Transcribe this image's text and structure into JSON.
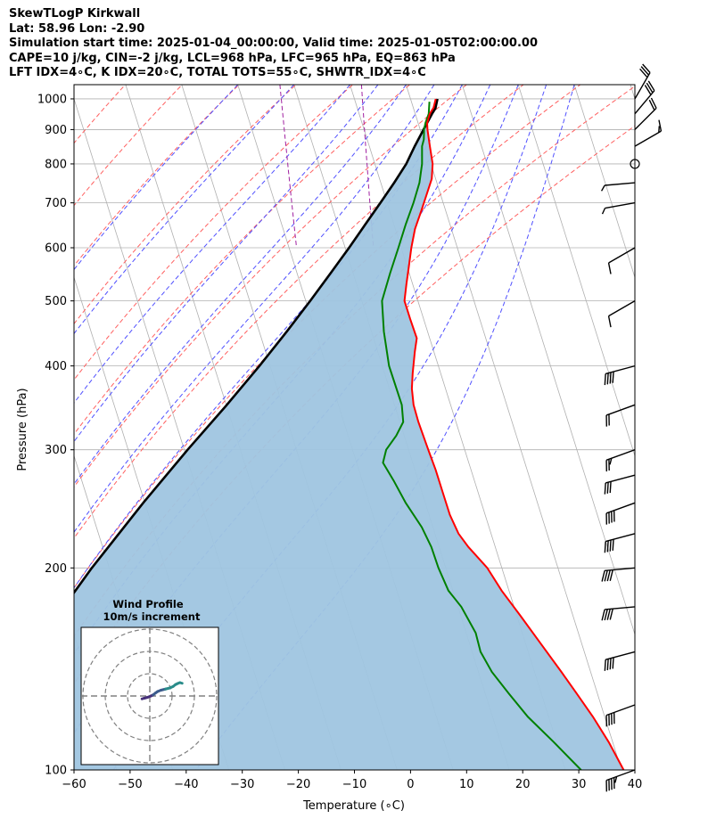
{
  "header": {
    "title": "SkewTLogP Kirkwall",
    "location": "Lat: 58.96   Lon: -2.90",
    "times": "Simulation start time: 2025-01-04_00:00:00, Valid time: 2025-01-05T02:00:00.00",
    "indices1": "CAPE=10 j/kg, CIN=-2 j/kg, LCL=968 hPa, LFC=965 hPa, EQ=863 hPa",
    "indices2": "LFT IDX=4∘C, K IDX=20∘C, TOTAL TOTS=55∘C, SHWTR_IDX=4∘C"
  },
  "chart_data": {
    "type": "line",
    "xlabel": "Temperature (∘C)",
    "ylabel": "Pressure (hPa)",
    "xlim": [
      -60,
      40
    ],
    "ylim": [
      1050,
      100
    ],
    "y_scale": "log",
    "grid": true,
    "x_ticks": [
      -60,
      -50,
      -40,
      -30,
      -20,
      -10,
      0,
      10,
      20,
      30,
      40
    ],
    "y_ticks": [
      1000,
      900,
      800,
      700,
      600,
      500,
      400,
      300,
      200,
      100
    ],
    "skew_per_decade_C": 37.6,
    "series": [
      {
        "role": "temperature",
        "color": "#ff0000",
        "points": [
          [
            1000,
            4.5
          ],
          [
            970,
            3.6
          ],
          [
            950,
            2.6
          ],
          [
            920,
            1.6
          ],
          [
            900,
            1.3
          ],
          [
            870,
            1.0
          ],
          [
            850,
            0.8
          ],
          [
            800,
            0.3
          ],
          [
            760,
            -0.7
          ],
          [
            720,
            -2.5
          ],
          [
            680,
            -4.4
          ],
          [
            640,
            -6.5
          ],
          [
            600,
            -8.2
          ],
          [
            560,
            -9.8
          ],
          [
            530,
            -11.1
          ],
          [
            500,
            -12.4
          ],
          [
            470,
            -12.4
          ],
          [
            440,
            -12.3
          ],
          [
            420,
            -13.4
          ],
          [
            390,
            -15.0
          ],
          [
            370,
            -16.0
          ],
          [
            350,
            -16.6
          ],
          [
            330,
            -16.7
          ],
          [
            300,
            -16.5
          ],
          [
            280,
            -16.3
          ],
          [
            260,
            -16.3
          ],
          [
            240,
            -16.3
          ],
          [
            225,
            -15.8
          ],
          [
            215,
            -14.8
          ],
          [
            200,
            -12.6
          ],
          [
            185,
            -11.3
          ],
          [
            170,
            -9.4
          ],
          [
            155,
            -7.4
          ],
          [
            140,
            -5.2
          ],
          [
            130,
            -3.7
          ],
          [
            120,
            -2.1
          ],
          [
            110,
            -0.7
          ],
          [
            100,
            0.4
          ]
        ]
      },
      {
        "role": "dewpoint",
        "color": "#008000",
        "points": [
          [
            990,
            3.2
          ],
          [
            950,
            2.4
          ],
          [
            920,
            1.3
          ],
          [
            900,
            0.7
          ],
          [
            870,
            0.1
          ],
          [
            850,
            -0.6
          ],
          [
            800,
            -1.6
          ],
          [
            750,
            -3.1
          ],
          [
            700,
            -5.3
          ],
          [
            650,
            -7.9
          ],
          [
            600,
            -10.5
          ],
          [
            550,
            -13.4
          ],
          [
            500,
            -16.4
          ],
          [
            450,
            -17.8
          ],
          [
            400,
            -18.8
          ],
          [
            350,
            -18.7
          ],
          [
            330,
            -19.4
          ],
          [
            315,
            -21.4
          ],
          [
            300,
            -24.0
          ],
          [
            287,
            -25.3
          ],
          [
            270,
            -24.4
          ],
          [
            250,
            -23.5
          ],
          [
            230,
            -22.0
          ],
          [
            215,
            -21.4
          ],
          [
            200,
            -21.3
          ],
          [
            185,
            -20.8
          ],
          [
            175,
            -19.4
          ],
          [
            160,
            -18.3
          ],
          [
            150,
            -18.5
          ],
          [
            140,
            -17.6
          ],
          [
            130,
            -15.8
          ],
          [
            120,
            -13.7
          ],
          [
            110,
            -10.5
          ],
          [
            100,
            -7.2
          ]
        ]
      },
      {
        "role": "parcel",
        "color": "#000000",
        "points": [
          [
            1000,
            4.8
          ],
          [
            968,
            3.9
          ],
          [
            950,
            3.0
          ],
          [
            900,
            0.6
          ],
          [
            850,
            -1.9
          ],
          [
            800,
            -4.4
          ],
          [
            750,
            -7.6
          ],
          [
            700,
            -11.2
          ],
          [
            650,
            -15.1
          ],
          [
            600,
            -19.3
          ],
          [
            550,
            -24.0
          ],
          [
            500,
            -29.2
          ],
          [
            450,
            -35.1
          ],
          [
            400,
            -41.9
          ],
          [
            350,
            -49.9
          ],
          [
            300,
            -59.4
          ],
          [
            250,
            -70.3
          ],
          [
            200,
            -83.1
          ],
          [
            150,
            -98.6
          ],
          [
            100,
            -118.0
          ]
        ]
      }
    ],
    "dry_adiabats_K": [
      190,
      200,
      210,
      220,
      230,
      240,
      250,
      260,
      270,
      280,
      290,
      300,
      310,
      320
    ],
    "moist_adiabats_C": [
      -30,
      -20,
      -10,
      -5,
      0,
      5,
      10,
      15,
      20,
      25,
      30
    ],
    "mixing_ratio_lines": [
      {
        "w": 0.0006,
        "from_hPa": 1050,
        "to_hPa": 600
      },
      {
        "w": 0.002,
        "from_hPa": 1050,
        "to_hPa": 600
      }
    ],
    "winds": [
      {
        "p": 100,
        "speed": 75,
        "dir": 290
      },
      {
        "p": 125,
        "speed": 70,
        "dir": 290
      },
      {
        "p": 150,
        "speed": 70,
        "dir": 285
      },
      {
        "p": 175,
        "speed": 70,
        "dir": 275
      },
      {
        "p": 200,
        "speed": 70,
        "dir": 275
      },
      {
        "p": 225,
        "speed": 70,
        "dir": 285
      },
      {
        "p": 250,
        "speed": 70,
        "dir": 290
      },
      {
        "p": 275,
        "speed": 60,
        "dir": 285
      },
      {
        "p": 300,
        "speed": 55,
        "dir": 290
      },
      {
        "p": 350,
        "speed": 50,
        "dir": 290
      },
      {
        "p": 400,
        "speed": 40,
        "dir": 285
      },
      {
        "p": 500,
        "speed": 10,
        "dir": 300
      },
      {
        "p": 600,
        "speed": 10,
        "dir": 300
      },
      {
        "p": 700,
        "speed": 5,
        "dir": 280
      },
      {
        "p": 750,
        "speed": 5,
        "dir": 275
      },
      {
        "p": 800,
        "speed": 0,
        "dir": 0
      },
      {
        "p": 850,
        "speed": 15,
        "dir": 120
      },
      {
        "p": 900,
        "speed": 20,
        "dir": 135
      },
      {
        "p": 950,
        "speed": 30,
        "dir": 140
      },
      {
        "p": 1000,
        "speed": 30,
        "dir": 150
      }
    ],
    "inset": {
      "title": "Wind Profile",
      "subtitle": "10m/s increment",
      "rings_ms": [
        10,
        20,
        30
      ],
      "hodograph": [
        [
          -3.5,
          -1.3
        ],
        [
          -2.5,
          -1.0
        ],
        [
          -1.0,
          -0.6
        ],
        [
          0.5,
          0.0
        ],
        [
          1.5,
          0.5
        ],
        [
          2.5,
          1.3
        ],
        [
          3.5,
          2.0
        ],
        [
          5.0,
          2.6
        ],
        [
          7.0,
          3.1
        ],
        [
          9.0,
          3.6
        ],
        [
          10.5,
          4.3
        ],
        [
          11.5,
          5.1
        ],
        [
          12.5,
          5.6
        ],
        [
          13.5,
          6.0
        ],
        [
          14.5,
          5.7
        ]
      ]
    }
  }
}
